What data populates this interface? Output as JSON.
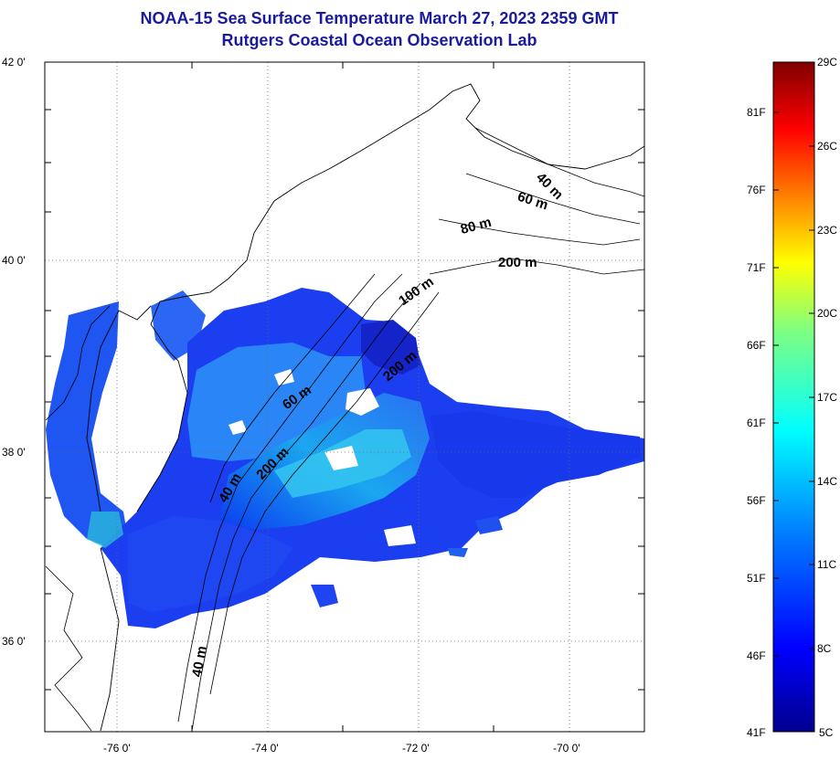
{
  "map": {
    "title": "NOAA-15 Sea Surface Temperature March 27, 2023 2359 GMT",
    "subtitle": "Rutgers Coastal Ocean Observation Lab",
    "lat_labels": [
      "42 0'",
      "40 0'",
      "38 0'",
      "36 0'"
    ],
    "lon_labels": [
      "-76 0'",
      "-74 0'",
      "-72 0'",
      "-70 0'"
    ],
    "contour_labels": [
      "40 m",
      "60 m",
      "80 m",
      "200 m",
      "100 m",
      "60 m",
      "200 m",
      "40 m",
      "200 m",
      "40 m"
    ]
  },
  "colorbar": {
    "fahrenheit_labels": [
      "81F",
      "76F",
      "71F",
      "66F",
      "61F",
      "56F",
      "51F",
      "46F",
      "41F"
    ],
    "celsius_labels": [
      "29C",
      "26C",
      "23C",
      "20C",
      "17C",
      "14C",
      "11C",
      "8C",
      "5C"
    ]
  },
  "colors": {
    "title": "#1a1aa0",
    "colormap": [
      "#00008f",
      "#0000ff",
      "#0080ff",
      "#00ffff",
      "#80ff80",
      "#ffff00",
      "#ff8000",
      "#ff0000",
      "#800000"
    ]
  }
}
